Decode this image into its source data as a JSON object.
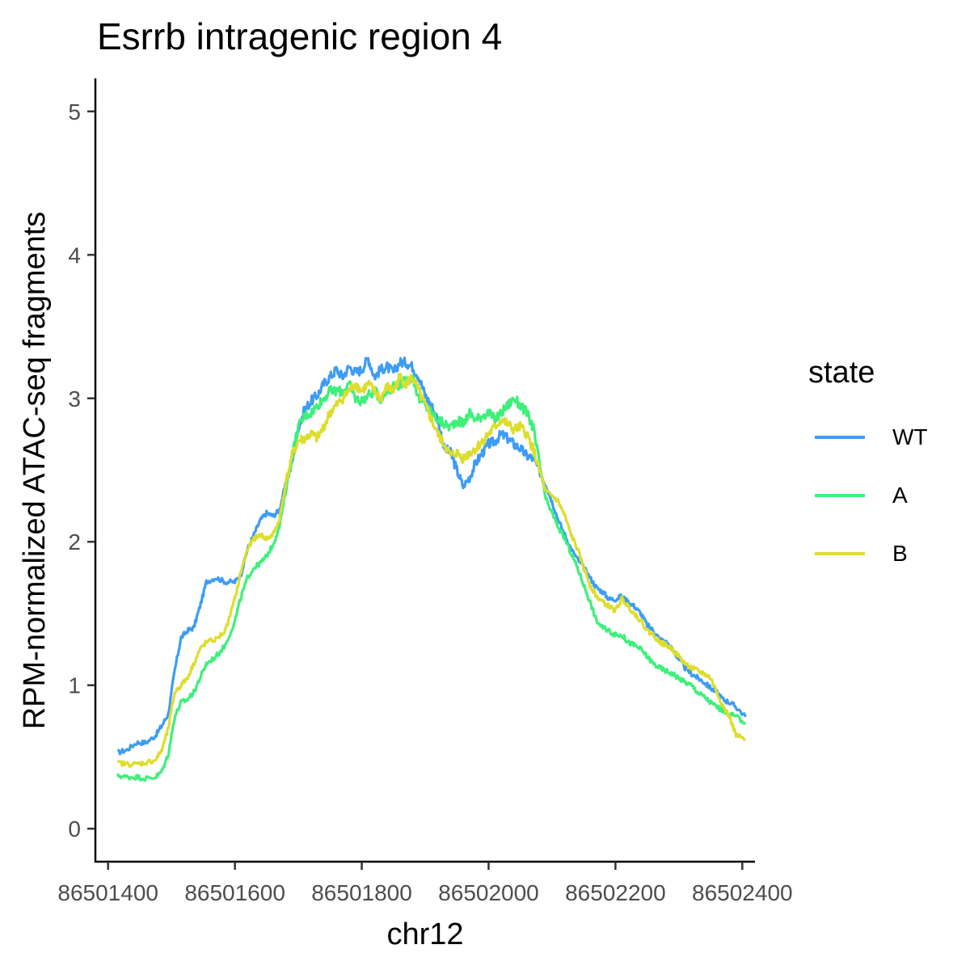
{
  "chart_data": {
    "type": "line",
    "title": "Esrrb intragenic region 4",
    "xlabel": "chr12",
    "ylabel": "RPM-normalized ATAC-seq fragments",
    "xlim": [
      86501380,
      86502420
    ],
    "ylim": [
      -0.23,
      5.23
    ],
    "xticks": [
      86501400,
      86501600,
      86501800,
      86502000,
      86502200,
      86502400
    ],
    "xtick_labels": [
      "86501400",
      "86501600",
      "86501800",
      "86502000",
      "86502200",
      "86502400"
    ],
    "yticks": [
      0,
      1,
      2,
      3,
      4,
      5
    ],
    "ytick_labels": [
      "0",
      "1",
      "2",
      "3",
      "4",
      "5"
    ],
    "grid": false,
    "legend": {
      "title": "state",
      "position": "right"
    },
    "series": [
      {
        "name": "WT",
        "color": "#3d9cf5",
        "x": [
          86501415,
          86501430,
          86501445,
          86501460,
          86501475,
          86501485,
          86501495,
          86501505,
          86501515,
          86501525,
          86501535,
          86501545,
          86501555,
          86501570,
          86501585,
          86501600,
          86501610,
          86501620,
          86501630,
          86501640,
          86501650,
          86501660,
          86501670,
          86501680,
          86501690,
          86501700,
          86501710,
          86501720,
          86501730,
          86501740,
          86501750,
          86501760,
          86501770,
          86501780,
          86501790,
          86501800,
          86501810,
          86501820,
          86501830,
          86501840,
          86501850,
          86501860,
          86501870,
          86501880,
          86501890,
          86501900,
          86501910,
          86501920,
          86501930,
          86501940,
          86501950,
          86501960,
          86501970,
          86501980,
          86501990,
          86502000,
          86502010,
          86502020,
          86502030,
          86502040,
          86502050,
          86502060,
          86502070,
          86502080,
          86502090,
          86502100,
          86502110,
          86502120,
          86502130,
          86502140,
          86502150,
          86502160,
          86502170,
          86502180,
          86502190,
          86502200,
          86502210,
          86502220,
          86502230,
          86502240,
          86502250,
          86502260,
          86502270,
          86502280,
          86502290,
          86502300,
          86502310,
          86502320,
          86502330,
          86502340,
          86502350,
          86502360,
          86502370,
          86502380,
          86502390,
          86502405
        ],
        "values": [
          0.53,
          0.55,
          0.6,
          0.6,
          0.65,
          0.72,
          0.8,
          1.1,
          1.33,
          1.38,
          1.4,
          1.55,
          1.72,
          1.75,
          1.72,
          1.72,
          1.78,
          1.95,
          2.05,
          2.15,
          2.2,
          2.18,
          2.22,
          2.4,
          2.55,
          2.8,
          2.92,
          2.98,
          3.02,
          3.1,
          3.15,
          3.2,
          3.15,
          3.22,
          3.18,
          3.2,
          3.28,
          3.15,
          3.2,
          3.22,
          3.18,
          3.25,
          3.25,
          3.22,
          3.15,
          3.02,
          2.95,
          2.85,
          2.65,
          2.62,
          2.5,
          2.38,
          2.45,
          2.55,
          2.62,
          2.68,
          2.7,
          2.75,
          2.72,
          2.68,
          2.65,
          2.6,
          2.58,
          2.5,
          2.4,
          2.28,
          2.15,
          2.05,
          1.95,
          1.88,
          1.82,
          1.75,
          1.68,
          1.65,
          1.6,
          1.6,
          1.62,
          1.58,
          1.55,
          1.5,
          1.42,
          1.38,
          1.32,
          1.3,
          1.25,
          1.18,
          1.12,
          1.08,
          1.05,
          1.02,
          0.98,
          0.95,
          0.9,
          0.88,
          0.85,
          0.78
        ]
      },
      {
        "name": "A",
        "color": "#3ef07a",
        "x": [
          86501415,
          86501430,
          86501445,
          86501460,
          86501475,
          86501485,
          86501495,
          86501505,
          86501515,
          86501525,
          86501535,
          86501545,
          86501555,
          86501570,
          86501585,
          86501600,
          86501610,
          86501620,
          86501630,
          86501640,
          86501650,
          86501660,
          86501670,
          86501680,
          86501690,
          86501700,
          86501710,
          86501720,
          86501730,
          86501740,
          86501750,
          86501760,
          86501770,
          86501780,
          86501790,
          86501800,
          86501810,
          86501820,
          86501830,
          86501840,
          86501850,
          86501860,
          86501870,
          86501880,
          86501890,
          86501900,
          86501910,
          86501920,
          86501930,
          86501940,
          86501950,
          86501960,
          86501970,
          86501980,
          86501990,
          86502000,
          86502010,
          86502020,
          86502030,
          86502040,
          86502050,
          86502060,
          86502070,
          86502080,
          86502090,
          86502100,
          86502110,
          86502120,
          86502130,
          86502140,
          86502150,
          86502160,
          86502170,
          86502180,
          86502190,
          86502200,
          86502210,
          86502220,
          86502230,
          86502240,
          86502250,
          86502260,
          86502270,
          86502280,
          86502290,
          86502300,
          86502310,
          86502320,
          86502330,
          86502340,
          86502350,
          86502360,
          86502370,
          86502380,
          86502390,
          86502405
        ],
        "values": [
          0.37,
          0.36,
          0.36,
          0.35,
          0.36,
          0.4,
          0.52,
          0.78,
          0.88,
          0.9,
          0.95,
          1.05,
          1.15,
          1.2,
          1.28,
          1.45,
          1.62,
          1.75,
          1.82,
          1.85,
          1.9,
          1.98,
          2.1,
          2.35,
          2.6,
          2.8,
          2.88,
          2.9,
          2.95,
          3.0,
          3.05,
          3.05,
          3.05,
          3.1,
          3.0,
          2.98,
          3.02,
          3.05,
          3.0,
          3.05,
          3.08,
          3.1,
          3.12,
          3.15,
          3.0,
          2.95,
          2.9,
          2.85,
          2.82,
          2.8,
          2.85,
          2.82,
          2.9,
          2.85,
          2.88,
          2.9,
          2.85,
          2.9,
          2.95,
          3.0,
          2.95,
          2.9,
          2.8,
          2.55,
          2.3,
          2.2,
          2.1,
          2.02,
          1.92,
          1.82,
          1.7,
          1.58,
          1.45,
          1.4,
          1.38,
          1.35,
          1.35,
          1.3,
          1.28,
          1.25,
          1.2,
          1.15,
          1.12,
          1.1,
          1.08,
          1.05,
          1.02,
          1.0,
          0.95,
          0.92,
          0.88,
          0.85,
          0.82,
          0.8,
          0.78,
          0.74
        ]
      },
      {
        "name": "B",
        "color": "#dddd2e",
        "x": [
          86501415,
          86501430,
          86501445,
          86501460,
          86501475,
          86501485,
          86501495,
          86501505,
          86501515,
          86501525,
          86501535,
          86501545,
          86501555,
          86501570,
          86501585,
          86501600,
          86501610,
          86501620,
          86501630,
          86501640,
          86501650,
          86501660,
          86501670,
          86501680,
          86501690,
          86501700,
          86501710,
          86501720,
          86501730,
          86501740,
          86501750,
          86501760,
          86501770,
          86501780,
          86501790,
          86501800,
          86501810,
          86501820,
          86501830,
          86501840,
          86501850,
          86501860,
          86501870,
          86501880,
          86501890,
          86501900,
          86501910,
          86501920,
          86501930,
          86501940,
          86501950,
          86501960,
          86501970,
          86501980,
          86501990,
          86502000,
          86502010,
          86502020,
          86502030,
          86502040,
          86502050,
          86502060,
          86502070,
          86502080,
          86502090,
          86502100,
          86502110,
          86502120,
          86502130,
          86502140,
          86502150,
          86502160,
          86502170,
          86502180,
          86502190,
          86502200,
          86502210,
          86502220,
          86502230,
          86502240,
          86502250,
          86502260,
          86502270,
          86502280,
          86502290,
          86502300,
          86502310,
          86502320,
          86502330,
          86502340,
          86502350,
          86502360,
          86502370,
          86502380,
          86502390,
          86502405
        ],
        "values": [
          0.46,
          0.45,
          0.45,
          0.46,
          0.48,
          0.55,
          0.7,
          0.95,
          1.0,
          1.05,
          1.15,
          1.25,
          1.3,
          1.32,
          1.38,
          1.6,
          1.8,
          1.95,
          2.02,
          2.05,
          2.02,
          2.05,
          2.15,
          2.4,
          2.6,
          2.7,
          2.72,
          2.75,
          2.72,
          2.8,
          2.9,
          2.95,
          3.0,
          3.05,
          3.1,
          3.05,
          3.1,
          3.05,
          3.0,
          3.08,
          3.05,
          3.15,
          3.1,
          3.15,
          3.05,
          2.95,
          2.85,
          2.75,
          2.68,
          2.6,
          2.62,
          2.58,
          2.62,
          2.65,
          2.7,
          2.75,
          2.8,
          2.85,
          2.82,
          2.78,
          2.8,
          2.75,
          2.65,
          2.5,
          2.35,
          2.32,
          2.28,
          2.18,
          2.05,
          1.95,
          1.82,
          1.7,
          1.62,
          1.58,
          1.55,
          1.52,
          1.6,
          1.55,
          1.5,
          1.45,
          1.38,
          1.35,
          1.3,
          1.28,
          1.25,
          1.2,
          1.15,
          1.12,
          1.1,
          1.08,
          1.05,
          0.95,
          0.85,
          0.78,
          0.65,
          0.62
        ]
      }
    ]
  }
}
